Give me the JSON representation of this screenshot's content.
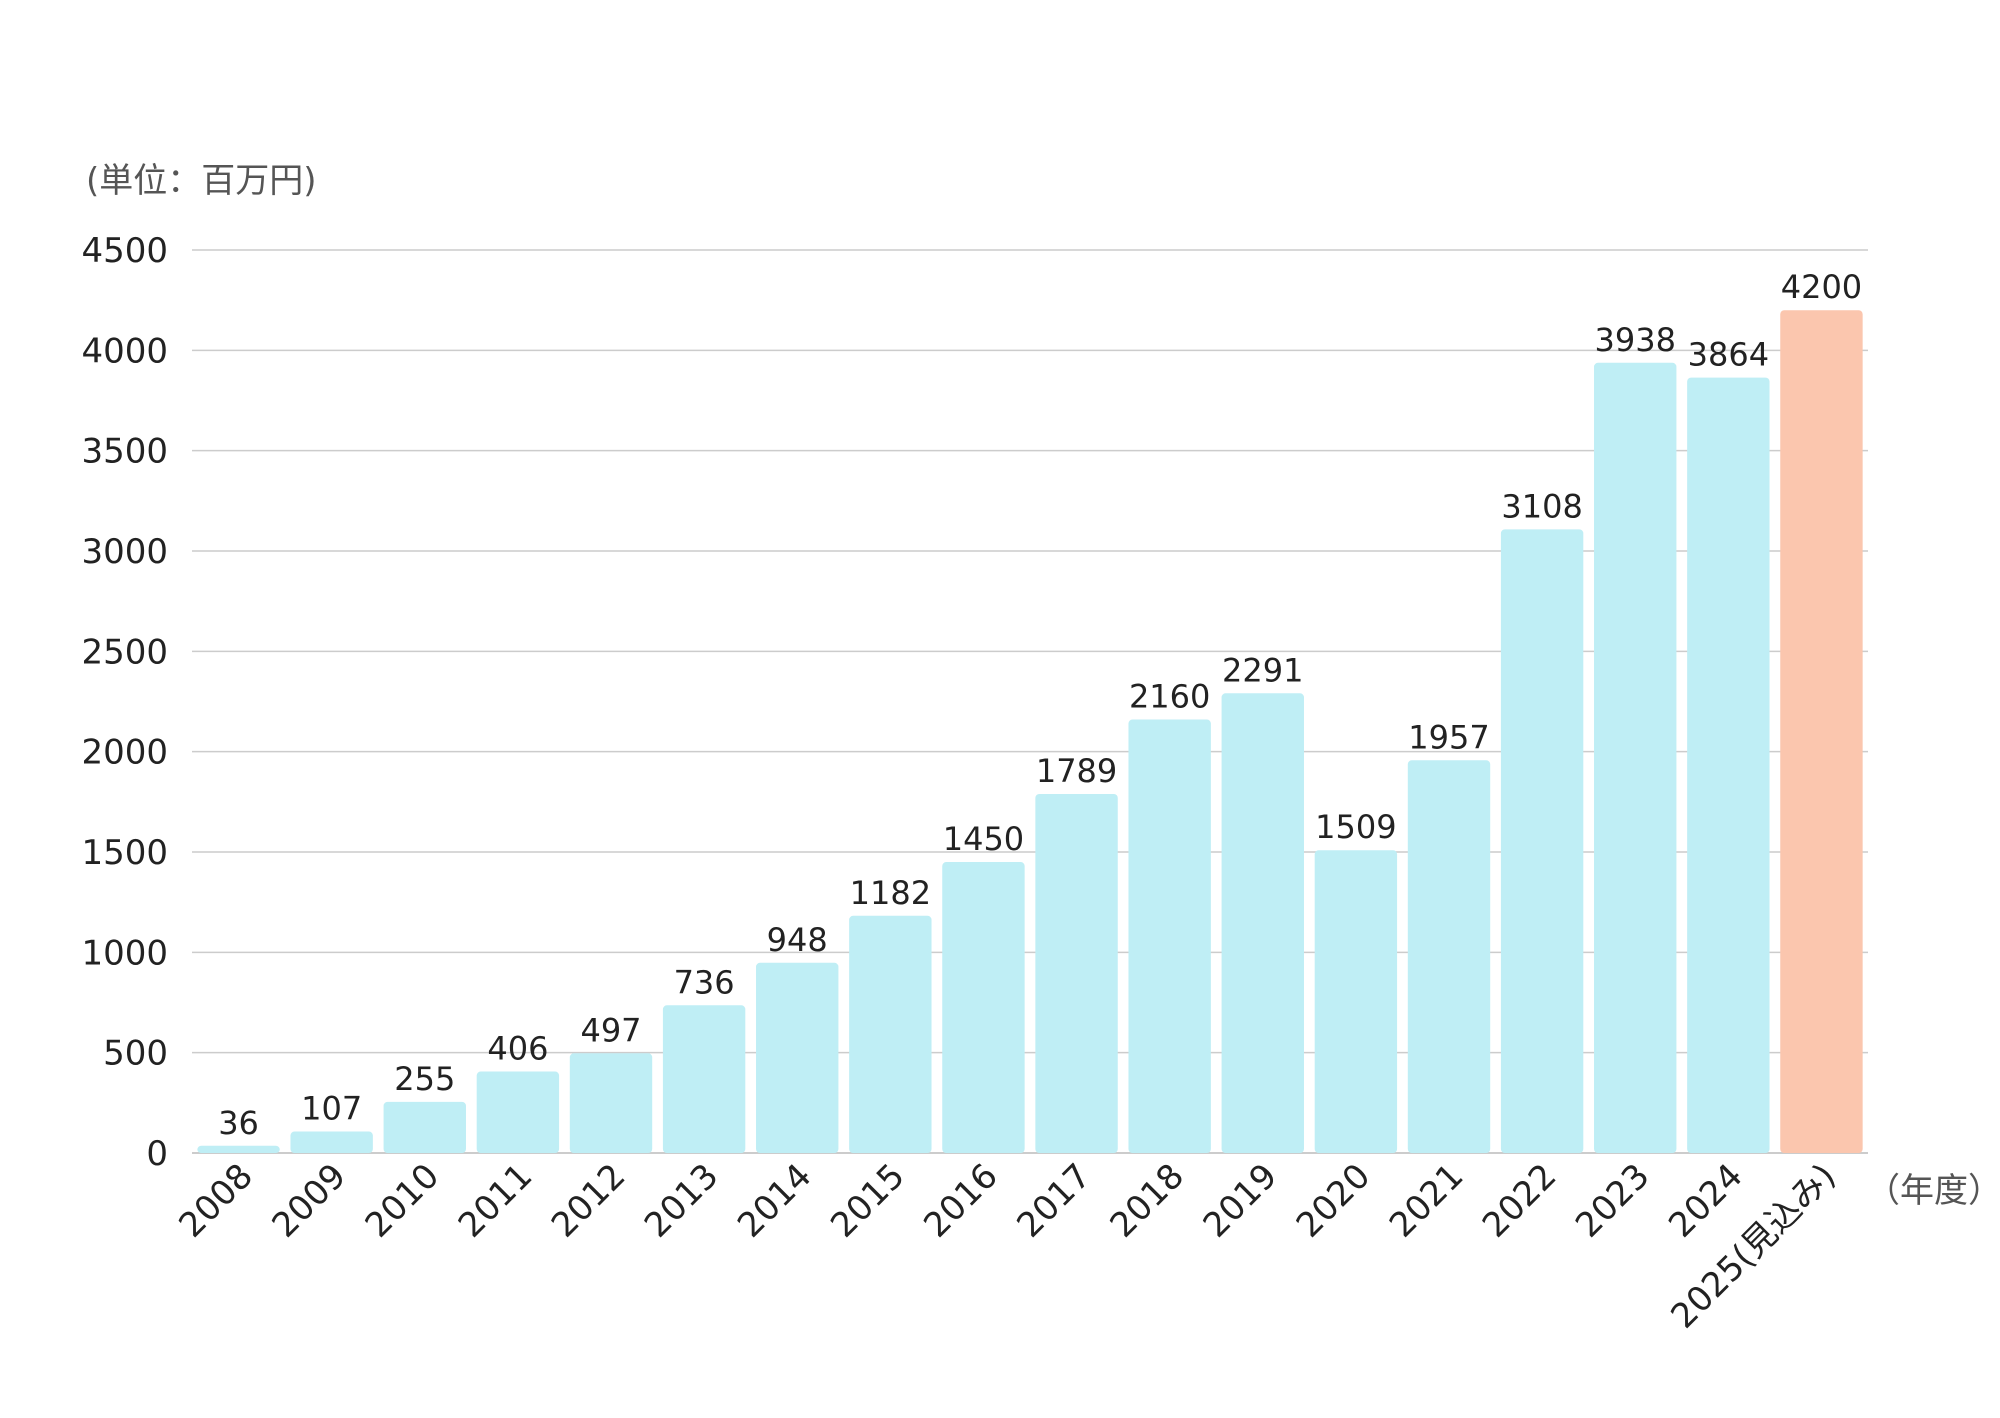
{
  "chart_data": {
    "type": "bar",
    "unit_label": "(単位：百万円)",
    "x_unit_label": "（年度）",
    "categories": [
      "2008",
      "2009",
      "2010",
      "2011",
      "2012",
      "2013",
      "2014",
      "2015",
      "2016",
      "2017",
      "2018",
      "2019",
      "2020",
      "2021",
      "2022",
      "2023",
      "2024",
      "2025(見込み)"
    ],
    "values": [
      36,
      107,
      255,
      406,
      497,
      736,
      948,
      1182,
      1450,
      1789,
      2160,
      2291,
      1509,
      1957,
      3108,
      3938,
      3864,
      4200
    ],
    "ylim": [
      0,
      4500
    ],
    "yticks": [
      0,
      500,
      1000,
      1500,
      2000,
      2500,
      3000,
      3500,
      4000,
      4500
    ],
    "grid": true,
    "colors": {
      "actual": "#bfeef5",
      "forecast": "#fbc6ae",
      "grid": "#cccccc"
    },
    "forecast_index": 17
  }
}
